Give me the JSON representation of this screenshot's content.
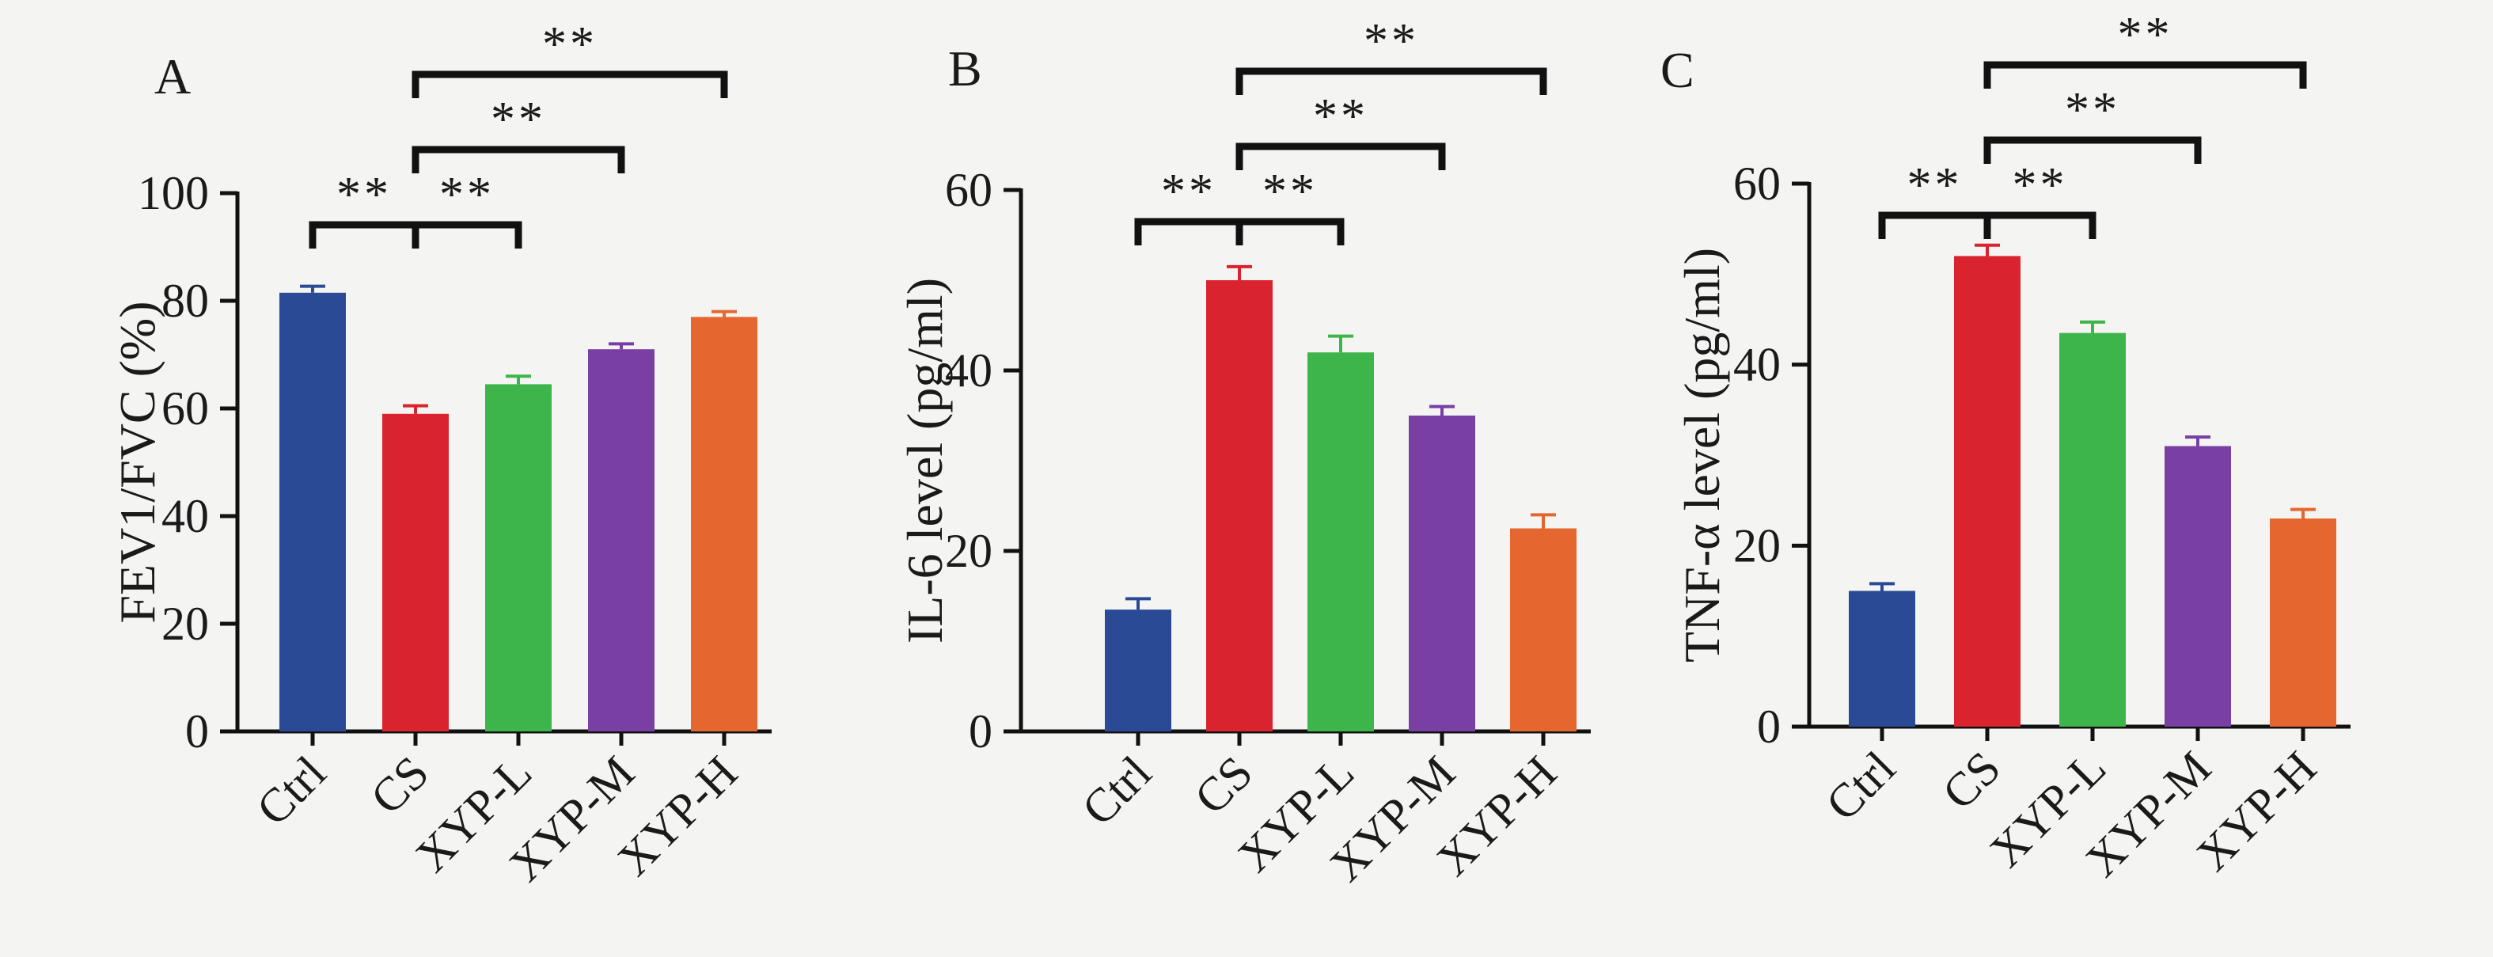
{
  "chart_data": [
    {
      "panel": "A",
      "type": "bar",
      "categories": [
        "Ctrl",
        "CS",
        "XYP-L",
        "XYP-M",
        "XYP-H"
      ],
      "values": [
        81.5,
        59,
        64.5,
        71,
        77
      ],
      "errors": [
        1.2,
        1.5,
        1.5,
        1.0,
        1.0
      ],
      "ylabel": "FEV1/FVC (%)",
      "ylim": [
        0,
        100
      ],
      "yticks": [
        0,
        20,
        40,
        60,
        80,
        100
      ],
      "colors": [
        "#2b4a96",
        "#d9232e",
        "#3db54a",
        "#7a3fa3",
        "#e5672f"
      ],
      "significance": [
        {
          "from": 0,
          "to": 1,
          "label": "**"
        },
        {
          "from": 1,
          "to": 2,
          "label": "**"
        },
        {
          "from": 1,
          "to": 3,
          "label": "**"
        },
        {
          "from": 1,
          "to": 4,
          "label": "**"
        }
      ]
    },
    {
      "panel": "B",
      "type": "bar",
      "categories": [
        "Ctrl",
        "CS",
        "XYP-L",
        "XYP-M",
        "XYP-H"
      ],
      "values": [
        13.5,
        50,
        42,
        35,
        22.5
      ],
      "errors": [
        1.2,
        1.5,
        1.8,
        1.0,
        1.5
      ],
      "ylabel": "IL-6 level (pg/ml)",
      "ylim": [
        0,
        60
      ],
      "yticks": [
        0,
        20,
        40,
        60
      ],
      "colors": [
        "#2b4a96",
        "#d9232e",
        "#3db54a",
        "#7a3fa3",
        "#e5672f"
      ],
      "significance": [
        {
          "from": 0,
          "to": 1,
          "label": "**"
        },
        {
          "from": 1,
          "to": 2,
          "label": "**"
        },
        {
          "from": 1,
          "to": 3,
          "label": "**"
        },
        {
          "from": 1,
          "to": 4,
          "label": "**"
        }
      ]
    },
    {
      "panel": "C",
      "type": "bar",
      "categories": [
        "Ctrl",
        "CS",
        "XYP-L",
        "XYP-M",
        "XYP-H"
      ],
      "values": [
        15,
        52,
        43.5,
        31,
        23
      ],
      "errors": [
        0.8,
        1.2,
        1.2,
        1.0,
        1.0
      ],
      "ylabel": "TNF-α level (pg/ml)",
      "ylim": [
        0,
        60
      ],
      "yticks": [
        0,
        20,
        40,
        60
      ],
      "colors": [
        "#2b4a96",
        "#d9232e",
        "#3db54a",
        "#7a3fa3",
        "#e5672f"
      ],
      "significance": [
        {
          "from": 0,
          "to": 1,
          "label": "**"
        },
        {
          "from": 1,
          "to": 2,
          "label": "**"
        },
        {
          "from": 1,
          "to": 3,
          "label": "**"
        },
        {
          "from": 1,
          "to": 4,
          "label": "**"
        }
      ]
    }
  ]
}
